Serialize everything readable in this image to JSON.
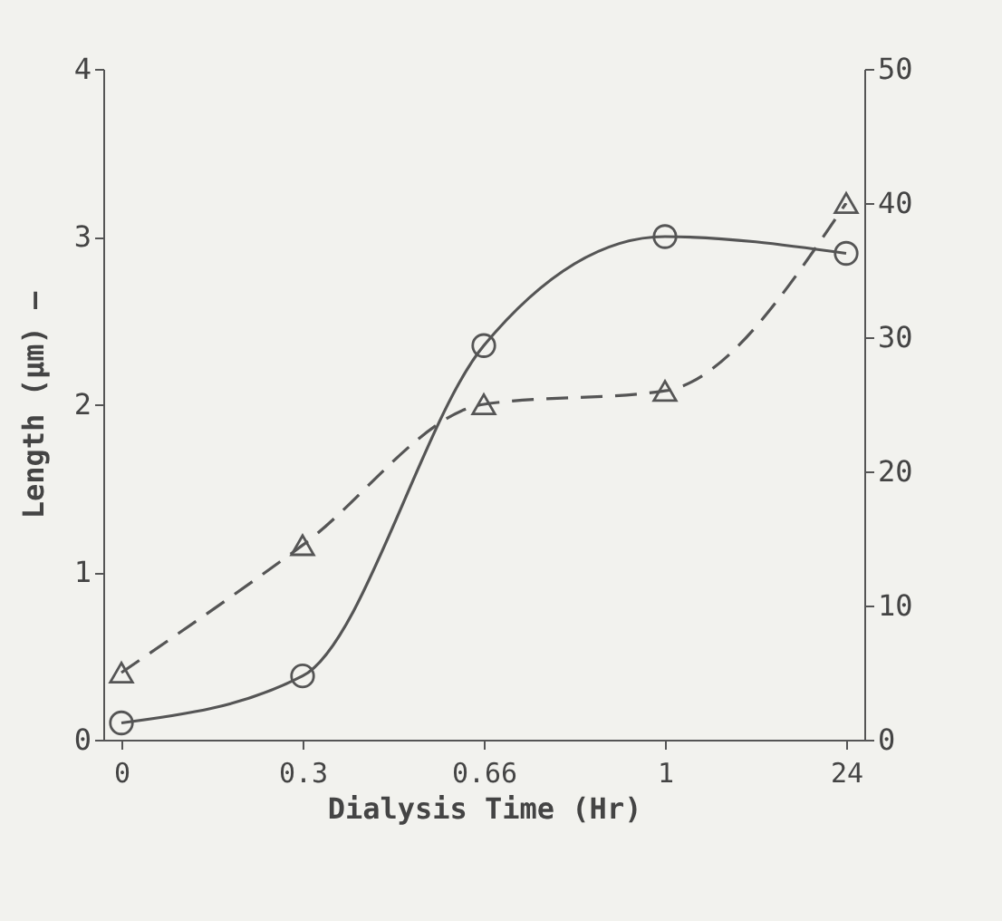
{
  "chart_data": {
    "type": "line",
    "xlabel": "Dialysis Time (Hr)",
    "ylabel": "Length (μm) —",
    "categories": [
      "0",
      "0.3",
      "0.66",
      "1",
      "24"
    ],
    "ylim": [
      0,
      4
    ],
    "yticks": [
      0,
      1,
      2,
      3,
      4
    ],
    "y2lim": [
      0,
      50
    ],
    "y2ticks": [
      0,
      10,
      20,
      30,
      40,
      50
    ],
    "grid": false,
    "series": [
      {
        "color": "#555555",
        "values": [
          0.1,
          0.38,
          2.35,
          3.0,
          2.9
        ],
        "marker": "circle",
        "line_style": "solid"
      },
      {
        "color": "#555555",
        "values": [
          5,
          14.5,
          25,
          26,
          40
        ],
        "axis": "y2",
        "marker": "triangle",
        "line_style": "dashed"
      }
    ]
  }
}
